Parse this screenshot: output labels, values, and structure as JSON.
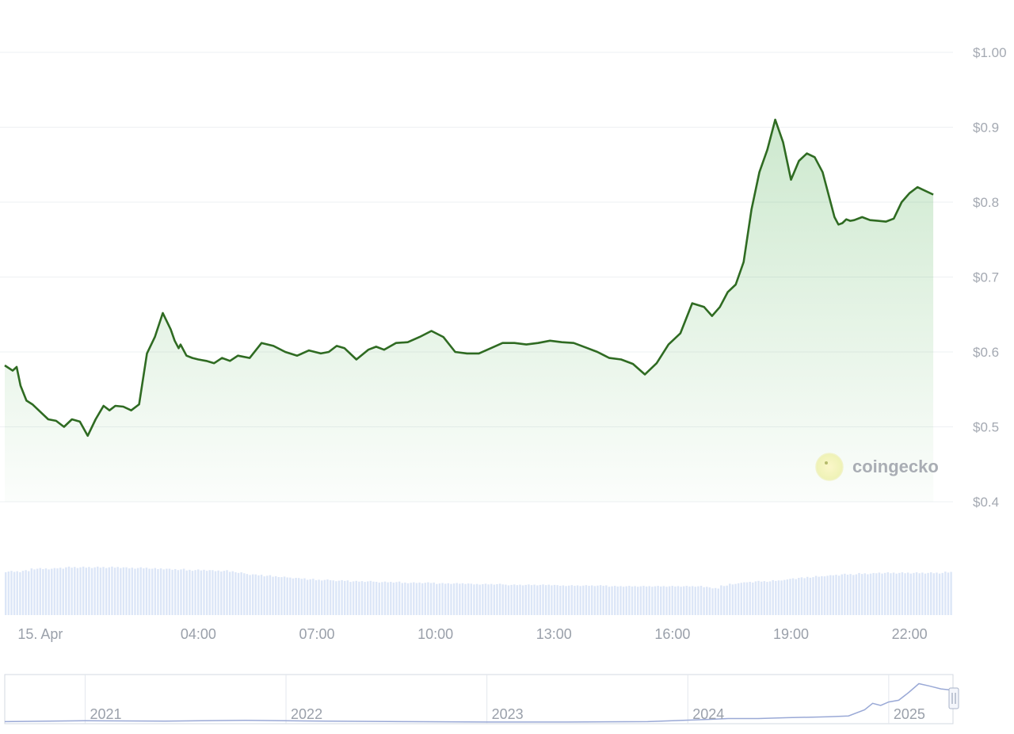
{
  "chart_data": {
    "type": "area",
    "brand": "coingecko",
    "colors": {
      "line": "#2f6b22",
      "fill": "#4caf50",
      "volume": "#dce6f7",
      "grid": "#eef0f3",
      "navigator": "#9aa9d6"
    },
    "y_ticks": [
      "$1.00",
      "$0.9",
      "$0.8",
      "$0.7",
      "$0.6",
      "$0.5",
      "$0.4"
    ],
    "ylim": [
      0.4,
      1.0
    ],
    "x_ticks": [
      "15. Apr",
      "04:00",
      "07:00",
      "10:00",
      "13:00",
      "16:00",
      "19:00",
      "22:00"
    ],
    "xlim_hours": [
      -0.9,
      23.1
    ],
    "grid": true,
    "series": [
      {
        "values_x_hours": [
          -0.9,
          -0.7,
          -0.6,
          -0.5,
          -0.35,
          -0.2,
          0.0,
          0.2,
          0.4,
          0.6,
          0.8,
          1.0,
          1.2,
          1.4,
          1.6,
          1.75,
          1.9,
          2.1,
          2.3,
          2.5,
          2.7,
          2.9,
          3.1,
          3.3,
          3.4,
          3.5,
          3.55,
          3.7,
          3.85,
          4.0,
          4.2,
          4.4,
          4.6,
          4.8,
          5.0,
          5.3,
          5.6,
          5.9,
          6.2,
          6.5,
          6.8,
          7.1,
          7.3,
          7.5,
          7.7,
          8.0,
          8.3,
          8.5,
          8.7,
          9.0,
          9.3,
          9.6,
          9.9,
          10.2,
          10.5,
          10.8,
          11.1,
          11.4,
          11.7,
          12.0,
          12.3,
          12.6,
          12.9,
          13.2,
          13.5,
          13.8,
          14.1,
          14.4,
          14.7,
          15.0,
          15.3,
          15.6,
          15.9,
          16.2,
          16.5,
          16.8,
          17.0,
          17.2,
          17.4,
          17.6,
          17.8,
          18.0,
          18.2,
          18.4,
          18.6,
          18.8,
          19.0,
          19.2,
          19.4,
          19.6,
          19.8,
          19.9,
          20.0,
          20.1,
          20.2,
          20.3,
          20.4,
          20.5,
          20.6,
          20.8,
          21.0,
          21.2,
          21.4,
          21.6,
          21.8,
          22.0,
          22.2,
          22.4,
          22.6
        ],
        "values_y": [
          0.582,
          0.575,
          0.58,
          0.555,
          0.535,
          0.53,
          0.52,
          0.51,
          0.508,
          0.5,
          0.51,
          0.507,
          0.488,
          0.51,
          0.528,
          0.522,
          0.528,
          0.527,
          0.522,
          0.53,
          0.598,
          0.62,
          0.652,
          0.63,
          0.615,
          0.605,
          0.61,
          0.595,
          0.592,
          0.59,
          0.588,
          0.585,
          0.592,
          0.588,
          0.595,
          0.592,
          0.612,
          0.608,
          0.6,
          0.595,
          0.602,
          0.598,
          0.6,
          0.608,
          0.605,
          0.59,
          0.603,
          0.607,
          0.603,
          0.612,
          0.613,
          0.62,
          0.628,
          0.62,
          0.6,
          0.598,
          0.598,
          0.605,
          0.612,
          0.612,
          0.61,
          0.612,
          0.615,
          0.613,
          0.612,
          0.606,
          0.6,
          0.592,
          0.59,
          0.584,
          0.57,
          0.585,
          0.61,
          0.625,
          0.665,
          0.66,
          0.648,
          0.66,
          0.68,
          0.69,
          0.72,
          0.79,
          0.84,
          0.87,
          0.91,
          0.88,
          0.83,
          0.855,
          0.865,
          0.86,
          0.84,
          0.82,
          0.8,
          0.78,
          0.77,
          0.772,
          0.777,
          0.775,
          0.776,
          0.78,
          0.776,
          0.775,
          0.774,
          0.778,
          0.8,
          0.812,
          0.82,
          0.815,
          0.81
        ]
      }
    ],
    "volume_relative": [
      0.62,
      0.62,
      0.63,
      0.66,
      0.66,
      0.66,
      0.67,
      0.68,
      0.68,
      0.68,
      0.68,
      0.68,
      0.68,
      0.68,
      0.67,
      0.67,
      0.67,
      0.66,
      0.66,
      0.65,
      0.65,
      0.64,
      0.64,
      0.64,
      0.63,
      0.63,
      0.62,
      0.6,
      0.58,
      0.57,
      0.56,
      0.55,
      0.54,
      0.53,
      0.52,
      0.51,
      0.5,
      0.5,
      0.49,
      0.49,
      0.48,
      0.48,
      0.48,
      0.47,
      0.47,
      0.47,
      0.46,
      0.46,
      0.46,
      0.46,
      0.45,
      0.45,
      0.45,
      0.45,
      0.44,
      0.44,
      0.44,
      0.44,
      0.43,
      0.43,
      0.43,
      0.43,
      0.43,
      0.43,
      0.42,
      0.42,
      0.42,
      0.42,
      0.42,
      0.42,
      0.41,
      0.41,
      0.41,
      0.41,
      0.41,
      0.41,
      0.41,
      0.41,
      0.41,
      0.41,
      0.41,
      0.4,
      0.38,
      0.42,
      0.44,
      0.46,
      0.47,
      0.48,
      0.48,
      0.49,
      0.5,
      0.52,
      0.53,
      0.54,
      0.55,
      0.56,
      0.57,
      0.58,
      0.58,
      0.59,
      0.59,
      0.6,
      0.6,
      0.6,
      0.6,
      0.6,
      0.6,
      0.6,
      0.6,
      0.61
    ],
    "navigator": {
      "labels": [
        "2021",
        "2022",
        "2023",
        "2024",
        "2025"
      ],
      "label_years": [
        2021.0,
        2022.0,
        2023.0,
        2024.0,
        2025.0
      ],
      "x_range_years": [
        2020.6,
        2025.32
      ],
      "x_years": [
        2020.6,
        2021.0,
        2021.4,
        2021.8,
        2022.2,
        2022.6,
        2023.0,
        2023.4,
        2023.8,
        2024.1,
        2024.2,
        2024.35,
        2024.5,
        2024.7,
        2024.8,
        2024.88,
        2024.92,
        2024.96,
        2025.0,
        2025.05,
        2025.1,
        2025.15,
        2025.2,
        2025.26,
        2025.3,
        2025.32
      ],
      "y_relative": [
        0.03,
        0.05,
        0.04,
        0.06,
        0.04,
        0.03,
        0.02,
        0.02,
        0.03,
        0.08,
        0.1,
        0.1,
        0.12,
        0.14,
        0.16,
        0.3,
        0.45,
        0.4,
        0.48,
        0.52,
        0.7,
        0.9,
        0.85,
        0.78,
        0.76,
        0.75
      ]
    }
  }
}
